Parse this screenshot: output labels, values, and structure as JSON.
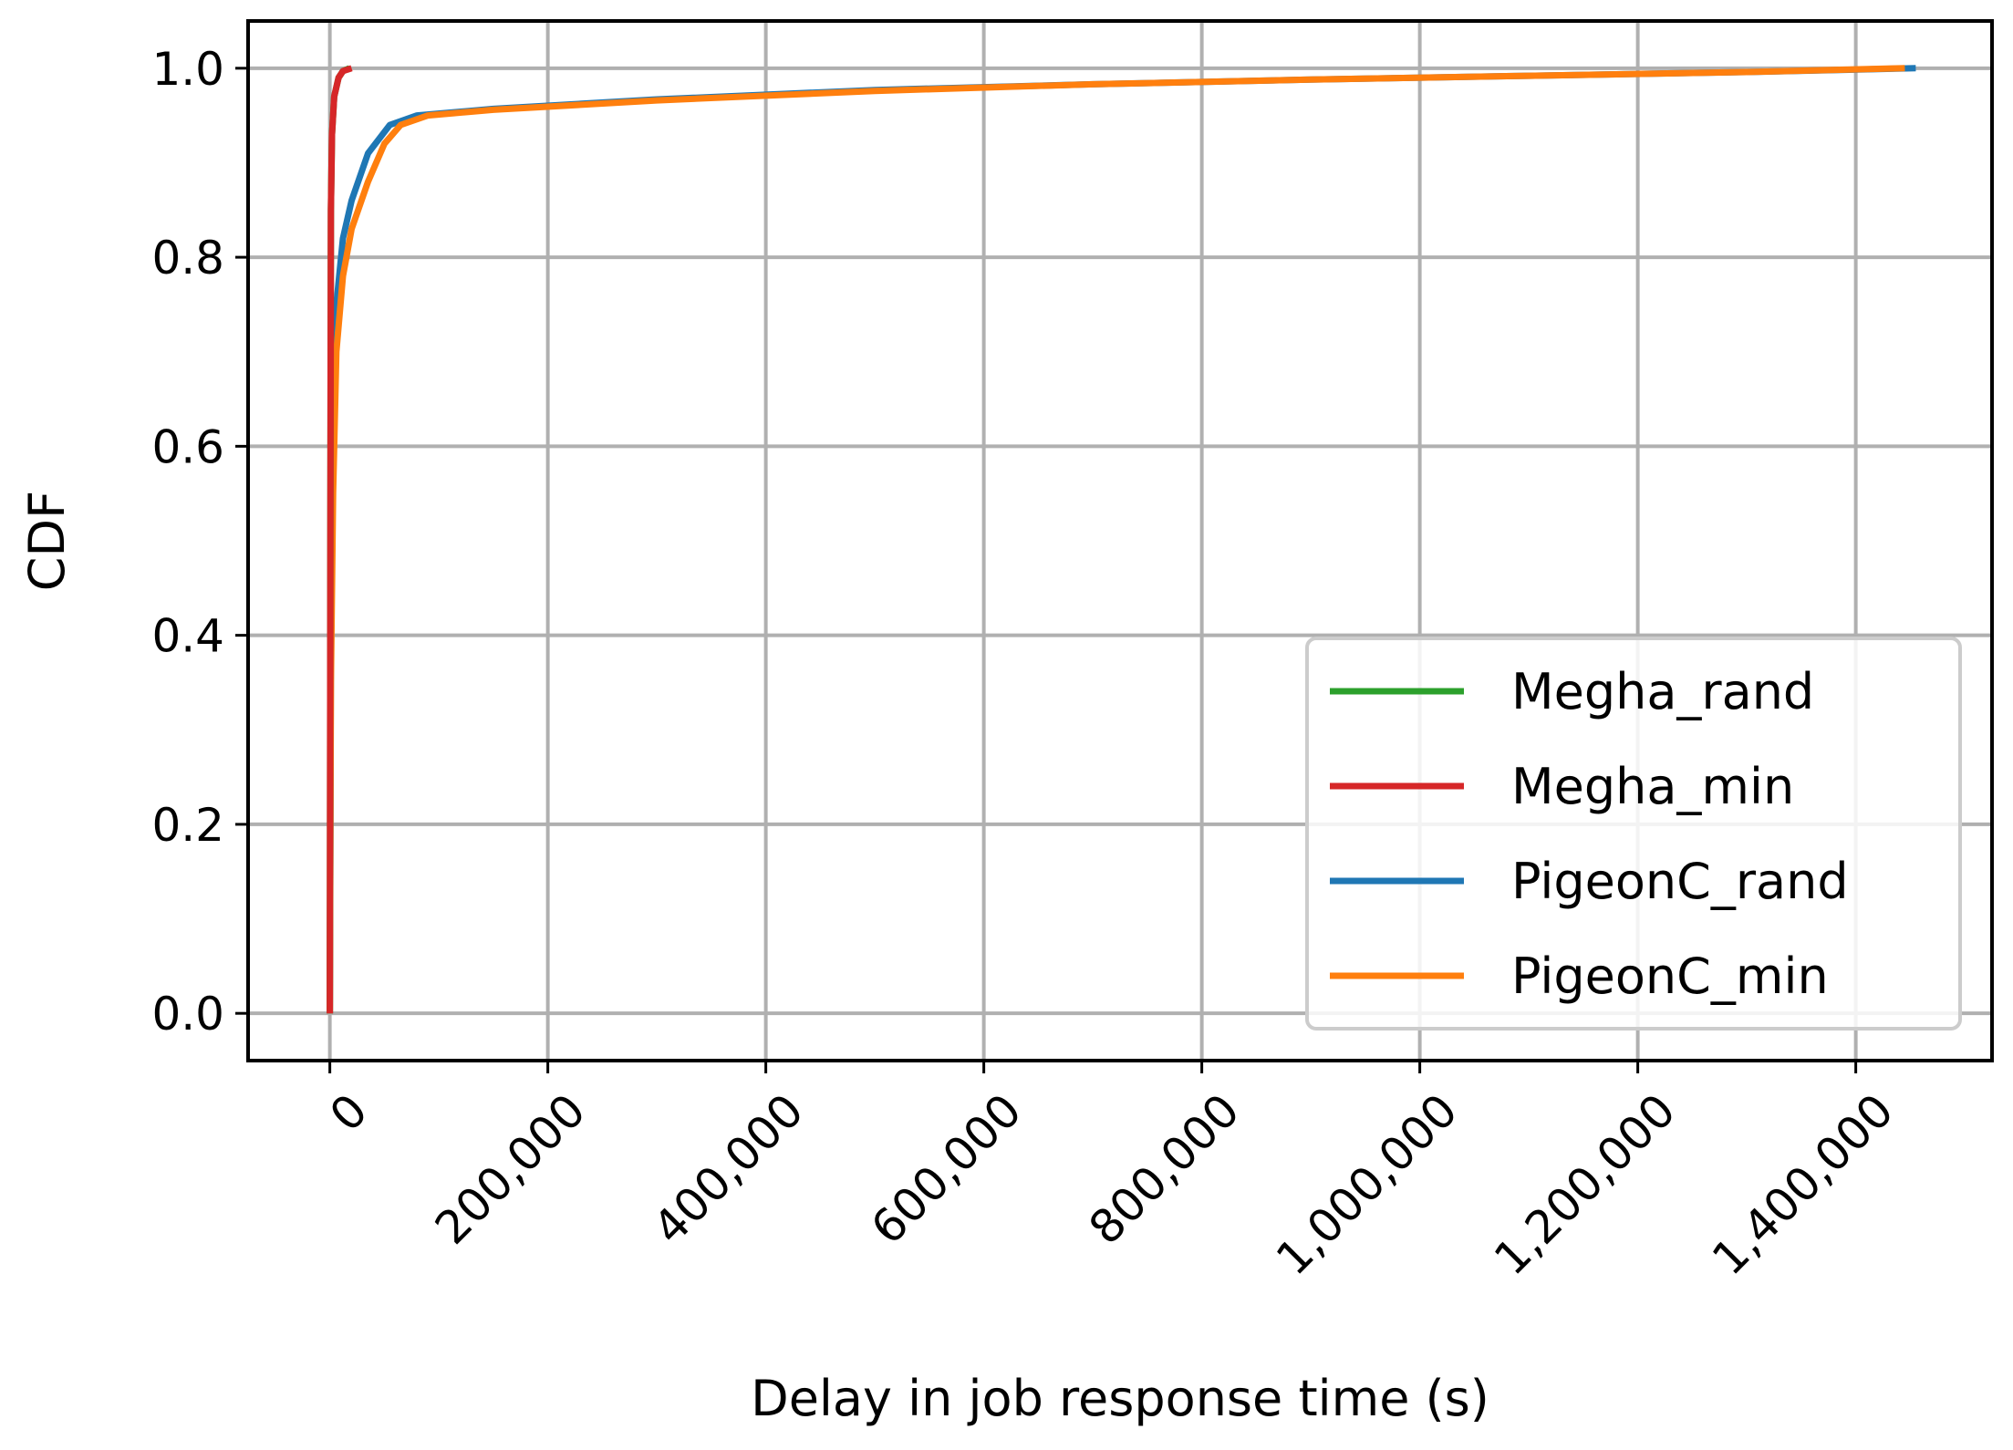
{
  "chart_data": {
    "type": "line",
    "xlabel": "Delay in job response time (s)",
    "ylabel": "CDF",
    "xlim": [
      -75000,
      1525000
    ],
    "ylim": [
      -0.05,
      1.05
    ],
    "xticks": [
      0,
      200000,
      400000,
      600000,
      800000,
      1000000,
      1200000,
      1400000
    ],
    "xtick_labels": [
      "0",
      "200,000",
      "400,000",
      "600,000",
      "800,000",
      "1,000,000",
      "1,200,000",
      "1,400,000"
    ],
    "yticks": [
      0.0,
      0.2,
      0.4,
      0.6,
      0.8,
      1.0
    ],
    "ytick_labels": [
      "0.0",
      "0.2",
      "0.4",
      "0.6",
      "0.8",
      "1.0"
    ],
    "grid": true,
    "legend_position": "lower-right",
    "series": [
      {
        "name": "PigeonC_rand",
        "color": "#1f77b4",
        "points": [
          [
            0,
            0
          ],
          [
            1000,
            0.4
          ],
          [
            3000,
            0.6
          ],
          [
            6000,
            0.75
          ],
          [
            12000,
            0.82
          ],
          [
            20000,
            0.86
          ],
          [
            35000,
            0.91
          ],
          [
            55000,
            0.94
          ],
          [
            80000,
            0.95
          ],
          [
            150000,
            0.957
          ],
          [
            300000,
            0.967
          ],
          [
            500000,
            0.977
          ],
          [
            700000,
            0.983
          ],
          [
            900000,
            0.988
          ],
          [
            1100000,
            0.992
          ],
          [
            1300000,
            0.996
          ],
          [
            1455000,
            1.0
          ]
        ]
      },
      {
        "name": "PigeonC_min",
        "color": "#ff7f0e",
        "points": [
          [
            0,
            0
          ],
          [
            1000,
            0.35
          ],
          [
            3000,
            0.55
          ],
          [
            6000,
            0.7
          ],
          [
            12000,
            0.78
          ],
          [
            20000,
            0.83
          ],
          [
            35000,
            0.88
          ],
          [
            50000,
            0.92
          ],
          [
            65000,
            0.94
          ],
          [
            90000,
            0.95
          ],
          [
            150000,
            0.956
          ],
          [
            300000,
            0.966
          ],
          [
            500000,
            0.976
          ],
          [
            700000,
            0.983
          ],
          [
            900000,
            0.988
          ],
          [
            1100000,
            0.992
          ],
          [
            1300000,
            0.996
          ],
          [
            1445000,
            1.0
          ]
        ]
      },
      {
        "name": "Megha_rand",
        "color": "#2ca02c",
        "points": [
          [
            0,
            0
          ],
          [
            500,
            0.5
          ],
          [
            1000,
            0.85
          ],
          [
            2000,
            0.93
          ],
          [
            4000,
            0.97
          ],
          [
            8000,
            0.99
          ],
          [
            12000,
            0.997
          ],
          [
            18000,
            1.0
          ]
        ]
      },
      {
        "name": "Megha_min",
        "color": "#d62728",
        "points": [
          [
            0,
            0
          ],
          [
            500,
            0.5
          ],
          [
            1000,
            0.85
          ],
          [
            2000,
            0.93
          ],
          [
            4000,
            0.97
          ],
          [
            8000,
            0.99
          ],
          [
            12000,
            0.997
          ],
          [
            20000,
            1.0
          ]
        ]
      }
    ],
    "legend_order": [
      "Megha_rand",
      "Megha_min",
      "PigeonC_rand",
      "PigeonC_min"
    ]
  }
}
